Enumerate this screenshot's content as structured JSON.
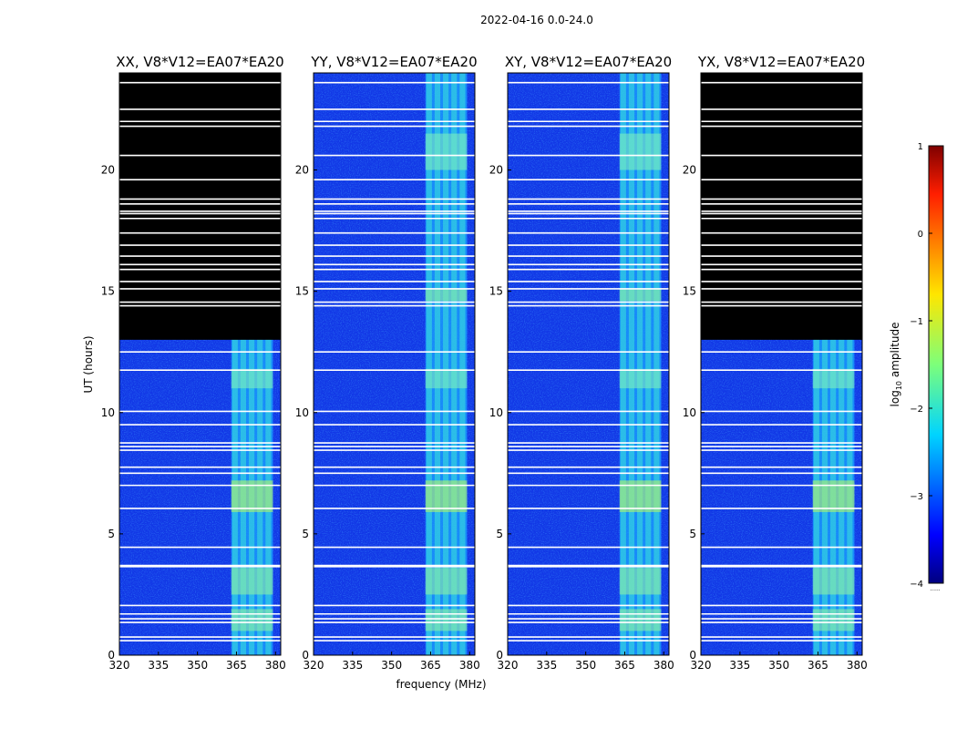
{
  "suptitle": "2022-04-16 0.0-24.0",
  "chart_data": {
    "type": "heatmap",
    "ylabel": "UT (hours)",
    "xlabel": "frequency (MHz)",
    "xlim": [
      320,
      382
    ],
    "ylim": [
      0,
      24
    ],
    "xticks": [
      320,
      335,
      350,
      365,
      380
    ],
    "yticks": [
      0,
      5,
      10,
      15,
      20
    ],
    "panels": [
      {
        "title": "XX, V8*V12=EA07*EA20",
        "blank_above_hours": 13.0,
        "bright_band_mhz": [
          363,
          379
        ]
      },
      {
        "title": "YY, V8*V12=EA07*EA20",
        "blank_above_hours": null,
        "bright_band_mhz": [
          363,
          379
        ]
      },
      {
        "title": "XY, V8*V12=EA07*EA20",
        "blank_above_hours": null,
        "bright_band_mhz": [
          363,
          379
        ]
      },
      {
        "title": "YX, V8*V12=EA07*EA20",
        "blank_above_hours": 13.0,
        "bright_band_mhz": [
          363,
          379
        ]
      }
    ],
    "flagged_rows_hours": [
      0.6,
      0.75,
      1.35,
      1.5,
      1.7,
      2.05,
      3.65,
      3.7,
      4.45,
      6.05,
      7.0,
      7.5,
      7.75,
      8.45,
      8.6,
      8.75,
      9.5,
      10.05,
      11.75,
      12.5,
      14.4,
      14.55,
      15.1,
      15.4,
      15.9,
      16.1,
      16.45,
      16.9,
      17.4,
      18.0,
      18.2,
      18.3,
      18.6,
      18.8,
      19.6,
      20.6,
      21.8,
      22.0,
      22.5,
      23.6
    ],
    "colorbar": {
      "label": "amplitude",
      "label_prefix": "log",
      "label_sub": "10",
      "range": [
        -4,
        1
      ],
      "ticks": [
        "1",
        "0",
        "−1",
        "−2",
        "−3",
        "−4"
      ],
      "tick_values": [
        1,
        0,
        -1,
        -2,
        -3,
        -4
      ],
      "footnote": "......"
    }
  }
}
